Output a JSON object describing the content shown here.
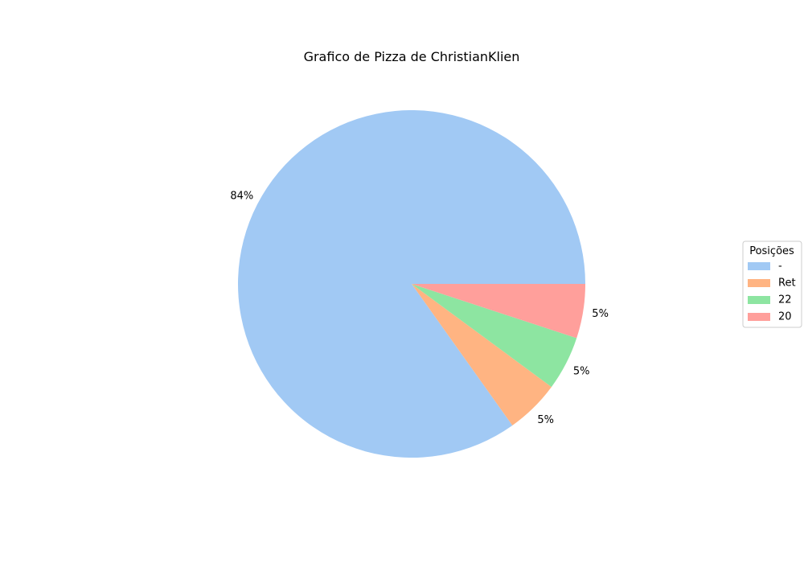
{
  "chart_data": {
    "type": "pie",
    "title": "Grafico de Pizza de ChristianKlien",
    "start_angle_deg": 0,
    "direction": "counterclockwise",
    "slices": [
      {
        "label": "-",
        "value": 84,
        "pct_label": "84%",
        "color": "#a1c9f4"
      },
      {
        "label": "Ret",
        "value": 5,
        "pct_label": "5%",
        "color": "#ffb482"
      },
      {
        "label": "22",
        "value": 5,
        "pct_label": "5%",
        "color": "#8de5a1"
      },
      {
        "label": "20",
        "value": 5,
        "pct_label": "5%",
        "color": "#ff9f9b"
      }
    ],
    "legend": {
      "title": "Posições",
      "placement": "right"
    }
  }
}
